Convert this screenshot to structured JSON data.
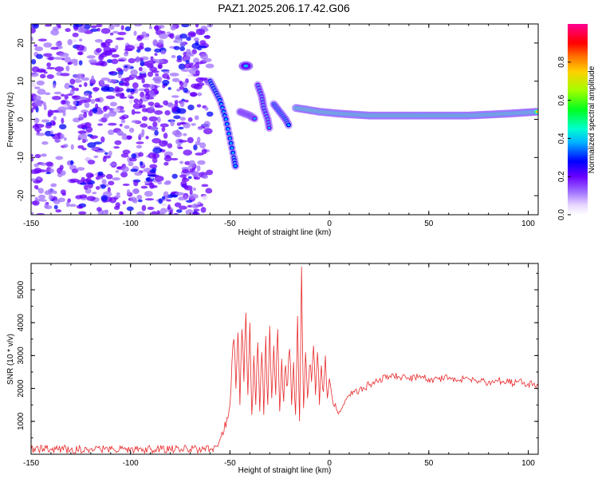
{
  "title": "PAZ1.2025.206.17.42.G06",
  "colors": {
    "snr_line": "#e8292b",
    "scatter_dots": "#a070ff",
    "ridge_core": "#ff2020",
    "axis": "#000000"
  },
  "chart_data": [
    {
      "type": "heatmap",
      "title": "",
      "xlabel": "Height of straight line (km)",
      "ylabel": "Frequency (Hz)",
      "xlim": [
        -150,
        105
      ],
      "ylim": [
        -25,
        25
      ],
      "xticks": [
        -150,
        -100,
        -50,
        0,
        50,
        100
      ],
      "yticks": [
        -20,
        -10,
        0,
        10,
        20
      ],
      "colorbar": {
        "label": "Normalized spectral amplitude",
        "range": [
          0,
          1
        ],
        "ticks": [
          0.0,
          0.2,
          0.4,
          0.6,
          0.8
        ],
        "colormap": "rainbow (white-violet-blue-cyan-green-yellow-red-magenta)"
      },
      "features": [
        {
          "kind": "noise",
          "x": [
            -150,
            -60
          ],
          "y": [
            -25,
            25
          ],
          "amplitude": 0.15
        },
        {
          "kind": "ridge",
          "points": [
            [
              -60,
              10
            ],
            [
              -55,
              5
            ],
            [
              -52,
              0
            ],
            [
              -50,
              -5
            ],
            [
              -48,
              -10
            ],
            [
              -47,
              -13
            ]
          ],
          "amplitude": 0.35
        },
        {
          "kind": "blob",
          "x": -42,
          "y": 14,
          "amplitude": 0.3
        },
        {
          "kind": "ridge",
          "points": [
            [
              -45,
              2
            ],
            [
              -40,
              1
            ],
            [
              -37,
              0
            ]
          ],
          "amplitude": 0.3
        },
        {
          "kind": "ridge",
          "points": [
            [
              -36,
              9
            ],
            [
              -34,
              6
            ],
            [
              -33,
              3
            ],
            [
              -31,
              0
            ],
            [
              -30,
              -3
            ]
          ],
          "amplitude": 0.3
        },
        {
          "kind": "ridge",
          "points": [
            [
              -28,
              4
            ],
            [
              -25,
              2
            ],
            [
              -22,
              0
            ],
            [
              -20,
              -2
            ]
          ],
          "amplitude": 0.35
        },
        {
          "kind": "ridge",
          "points": [
            [
              -17,
              3
            ],
            [
              -5,
              2
            ],
            [
              5,
              1.5
            ],
            [
              20,
              1
            ],
            [
              40,
              1
            ],
            [
              60,
              1
            ],
            [
              70,
              1
            ],
            [
              90,
              1.5
            ],
            [
              105,
              2
            ]
          ],
          "amplitude": 0.7
        }
      ]
    },
    {
      "type": "line",
      "title": "",
      "xlabel": "Height of straight line (km)",
      "ylabel": "SNR (10 * v/v)",
      "xlim": [
        -150,
        105
      ],
      "ylim": [
        0,
        5800
      ],
      "xticks": [
        -150,
        -100,
        -50,
        0,
        50,
        100
      ],
      "yticks": [
        1000,
        2000,
        3000,
        4000,
        5000
      ],
      "series": [
        {
          "x": [
            -150,
            -140,
            -130,
            -120,
            -110,
            -100,
            -90,
            -80,
            -70,
            -60,
            -57,
            -55,
            -53,
            -51,
            -50,
            -49,
            -48,
            -47,
            -46,
            -45,
            -44,
            -43,
            -42,
            -41,
            -40,
            -39,
            -38,
            -37,
            -36,
            -35,
            -34,
            -33,
            -32,
            -31,
            -30,
            -29,
            -28,
            -27,
            -26,
            -25,
            -24,
            -23,
            -22,
            -21,
            -20,
            -19,
            -18,
            -17,
            -16,
            -15,
            -14,
            -13,
            -12,
            -11,
            -10,
            -9,
            -8,
            -7,
            -6,
            -5,
            -4,
            -3,
            -2,
            -1,
            0,
            2,
            5,
            8,
            10,
            15,
            20,
            25,
            30,
            35,
            40,
            45,
            50,
            55,
            60,
            65,
            70,
            75,
            80,
            85,
            90,
            95,
            100,
            105
          ],
          "values": [
            150,
            160,
            145,
            155,
            150,
            160,
            150,
            155,
            150,
            160,
            230,
            450,
            700,
            1100,
            1500,
            2800,
            3500,
            2000,
            3700,
            1500,
            3800,
            2200,
            4300,
            1800,
            4000,
            1200,
            3000,
            1500,
            3400,
            1300,
            3100,
            1200,
            3600,
            1500,
            3900,
            1700,
            3300,
            1800,
            3800,
            1300,
            2900,
            1600,
            2700,
            2100,
            3200,
            1500,
            2800,
            1200,
            4200,
            1000,
            5700,
            1400,
            3100,
            1700,
            2700,
            2200,
            3300,
            1800,
            3100,
            1500,
            2700,
            1900,
            3000,
            1700,
            2300,
            1500,
            1300,
            1650,
            1800,
            1950,
            2100,
            2250,
            2350,
            2350,
            2300,
            2350,
            2300,
            2280,
            2300,
            2250,
            2300,
            2230,
            2200,
            2250,
            2180,
            2200,
            2150,
            2100
          ]
        }
      ]
    }
  ]
}
